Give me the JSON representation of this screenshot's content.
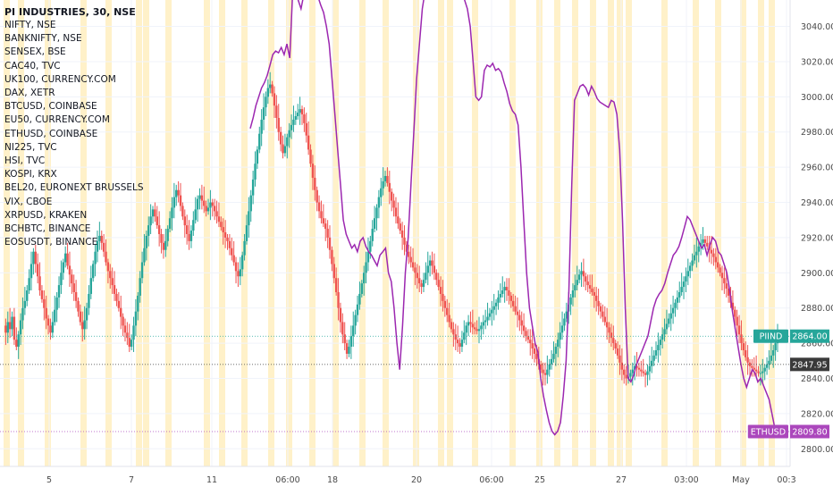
{
  "chart_data": {
    "type": "candlestick",
    "title": "PI INDUSTRIES, 30, NSE",
    "overlay_symbols": [
      "NIFTY, NSE",
      "BANKNIFTY, NSE",
      "SENSEX, BSE",
      "CAC40, TVC",
      "UK100, CURRENCY.COM",
      "DAX, XETR",
      "BTCUSD, COINBASE",
      "EU50, CURRENCY.COM",
      "ETHUSD, COINBASE",
      "NI225, TVC",
      "HSI, TVC",
      "KOSPI, KRX",
      "BEL20, EURONEXT BRUSSELS",
      "VIX, CBOE",
      "XRPUSD, KRAKEN",
      "BCHBTC, BINANCE",
      "EOSUSDT, BINANCE"
    ],
    "ylim": [
      2790,
      3055
    ],
    "y_ticks": [
      "3040.00",
      "3020.00",
      "3000.00",
      "2980.00",
      "2960.00",
      "2940.00",
      "2920.00",
      "2900.00",
      "2880.00",
      "2860.00",
      "2840.00",
      "2820.00",
      "2800.00"
    ],
    "x_tick_labels": [
      "5",
      "7",
      "11",
      "06:00",
      "18",
      "20",
      "06:00",
      "25",
      "27",
      "03:00",
      "May",
      "00:3"
    ],
    "price_labels": [
      {
        "name": "PIIND",
        "value": 2864.0,
        "text": "2864.00",
        "color": "#26a69a"
      },
      {
        "name": "",
        "value": 2847.95,
        "text": "2847.95",
        "color": "#3a3a3a"
      },
      {
        "name": "ETHUSD",
        "value": 2809.8,
        "text": "2809.80",
        "color": "#ab47bc"
      }
    ],
    "colors": {
      "up": "#26a69a",
      "down": "#ef5350",
      "overlay_line": "#9c27b0",
      "session_band": "#fff1c9",
      "axis_text": "#4a4a4a"
    },
    "price_series": [
      2870,
      2866,
      2872,
      2868,
      2875,
      2862,
      2858,
      2865,
      2873,
      2880,
      2884,
      2890,
      2897,
      2905,
      2912,
      2905,
      2898,
      2890,
      2885,
      2880,
      2874,
      2870,
      2866,
      2872,
      2879,
      2886,
      2893,
      2900,
      2906,
      2911,
      2904,
      2899,
      2894,
      2889,
      2884,
      2878,
      2872,
      2868,
      2873,
      2880,
      2888,
      2897,
      2905,
      2912,
      2918,
      2921,
      2917,
      2912,
      2906,
      2901,
      2897,
      2893,
      2888,
      2884,
      2880,
      2875,
      2870,
      2866,
      2863,
      2858,
      2862,
      2870,
      2878,
      2887,
      2897,
      2906,
      2914,
      2921,
      2927,
      2932,
      2936,
      2932,
      2927,
      2922,
      2917,
      2913,
      2918,
      2925,
      2931,
      2937,
      2943,
      2947,
      2944,
      2938,
      2932,
      2927,
      2922,
      2918,
      2924,
      2930,
      2936,
      2942,
      2944,
      2941,
      2938,
      2935,
      2937,
      2940,
      2938,
      2935,
      2932,
      2929,
      2926,
      2923,
      2920,
      2918,
      2914,
      2910,
      2906,
      2901,
      2898,
      2902,
      2910,
      2918,
      2927,
      2935,
      2944,
      2953,
      2962,
      2970,
      2979,
      2987,
      2994,
      3000,
      3005,
      3007,
      3002,
      2995,
      2988,
      2980,
      2973,
      2968,
      2972,
      2977,
      2981,
      2984,
      2987,
      2989,
      2991,
      2993,
      2990,
      2985,
      2978,
      2970,
      2962,
      2954,
      2947,
      2940,
      2935,
      2931,
      2928,
      2925,
      2920,
      2913,
      2905,
      2897,
      2889,
      2880,
      2872,
      2865,
      2860,
      2854,
      2858,
      2864,
      2870,
      2876,
      2882,
      2888,
      2894,
      2900,
      2906,
      2912,
      2918,
      2925,
      2931,
      2937,
      2943,
      2948,
      2952,
      2955,
      2951,
      2946,
      2941,
      2937,
      2932,
      2928,
      2924,
      2920,
      2916,
      2912,
      2909,
      2906,
      2903,
      2900,
      2897,
      2894,
      2892,
      2896,
      2900,
      2904,
      2907,
      2904,
      2900,
      2896,
      2892,
      2888,
      2884,
      2880,
      2876,
      2872,
      2868,
      2865,
      2862,
      2860,
      2858,
      2862,
      2866,
      2870,
      2872,
      2871,
      2869,
      2868,
      2867,
      2868,
      2870,
      2872,
      2873,
      2875,
      2877,
      2879,
      2881,
      2883,
      2886,
      2888,
      2890,
      2892,
      2890,
      2887,
      2884,
      2881,
      2878,
      2876,
      2873,
      2870,
      2867,
      2864,
      2862,
      2860,
      2857,
      2854,
      2851,
      2848,
      2845,
      2843,
      2842,
      2845,
      2848,
      2851,
      2854,
      2858,
      2862,
      2866,
      2870,
      2874,
      2878,
      2882,
      2886,
      2890,
      2893,
      2896,
      2899,
      2901,
      2898,
      2895,
      2893,
      2891,
      2889,
      2887,
      2884,
      2881,
      2878,
      2875,
      2872,
      2869,
      2866,
      2863,
      2860,
      2857,
      2853,
      2849,
      2845,
      2842,
      2840,
      2841,
      2843,
      2845,
      2847,
      2846,
      2845,
      2844,
      2843,
      2842,
      2844,
      2847,
      2850,
      2853,
      2856,
      2859,
      2862,
      2865,
      2868,
      2871,
      2874,
      2877,
      2880,
      2883,
      2886,
      2889,
      2892,
      2895,
      2898,
      2901,
      2904,
      2907,
      2910,
      2912,
      2915,
      2917,
      2919,
      2917,
      2915,
      2913,
      2911,
      2909,
      2906,
      2903,
      2900,
      2897,
      2894,
      2891,
      2887,
      2883,
      2879,
      2875,
      2870,
      2865,
      2860,
      2856,
      2852,
      2849,
      2847,
      2846,
      2845,
      2844,
      2843,
      2843,
      2844,
      2846,
      2848,
      2850,
      2853,
      2856,
      2860,
      2864
    ],
    "ethusd_line": [
      2982,
      2988,
      2995,
      3000,
      3005,
      3008,
      3012,
      3018,
      3024,
      3026,
      3025,
      3028,
      3024,
      3030,
      3022,
      3058,
      3062,
      3055,
      3050,
      3058,
      3070,
      3068,
      3064,
      3060,
      3057,
      3052,
      3048,
      3040,
      3030,
      3010,
      2990,
      2970,
      2950,
      2930,
      2922,
      2918,
      2914,
      2916,
      2912,
      2918,
      2920,
      2915,
      2912,
      2910,
      2907,
      2904,
      2910,
      2912,
      2914,
      2900,
      2895,
      2880,
      2860,
      2845,
      2870,
      2900,
      2920,
      2950,
      2980,
      3010,
      3030,
      3050,
      3060,
      3063,
      3061,
      3058,
      3064,
      3066,
      3063,
      3062,
      3060,
      3064,
      3060,
      3062,
      3062,
      3058,
      3055,
      3050,
      3040,
      3020,
      3000,
      2998,
      3000,
      3015,
      3018,
      3017,
      3019,
      3015,
      3016,
      3014,
      3008,
      3003,
      2996,
      2992,
      2990,
      2984,
      2960,
      2930,
      2900,
      2880,
      2870,
      2860,
      2855,
      2840,
      2830,
      2822,
      2815,
      2810,
      2808,
      2810,
      2815,
      2830,
      2850,
      2890,
      2950,
      2998,
      3002,
      3006,
      3007,
      3005,
      3001,
      3006,
      3003,
      2999,
      2997,
      2996,
      2995,
      2994,
      2998,
      2997,
      2990,
      2970,
      2930,
      2880,
      2840,
      2838,
      2842,
      2848,
      2852,
      2856,
      2860,
      2864,
      2872,
      2880,
      2885,
      2888,
      2890,
      2894,
      2900,
      2905,
      2910,
      2912,
      2915,
      2920,
      2926,
      2932,
      2930,
      2926,
      2922,
      2918,
      2914,
      2916,
      2910,
      2916,
      2920,
      2918,
      2912,
      2910,
      2905,
      2900,
      2890,
      2878,
      2868,
      2858,
      2848,
      2840,
      2835,
      2840,
      2845,
      2843,
      2838,
      2840,
      2836,
      2832,
      2828,
      2820,
      2812,
      2810
    ]
  }
}
